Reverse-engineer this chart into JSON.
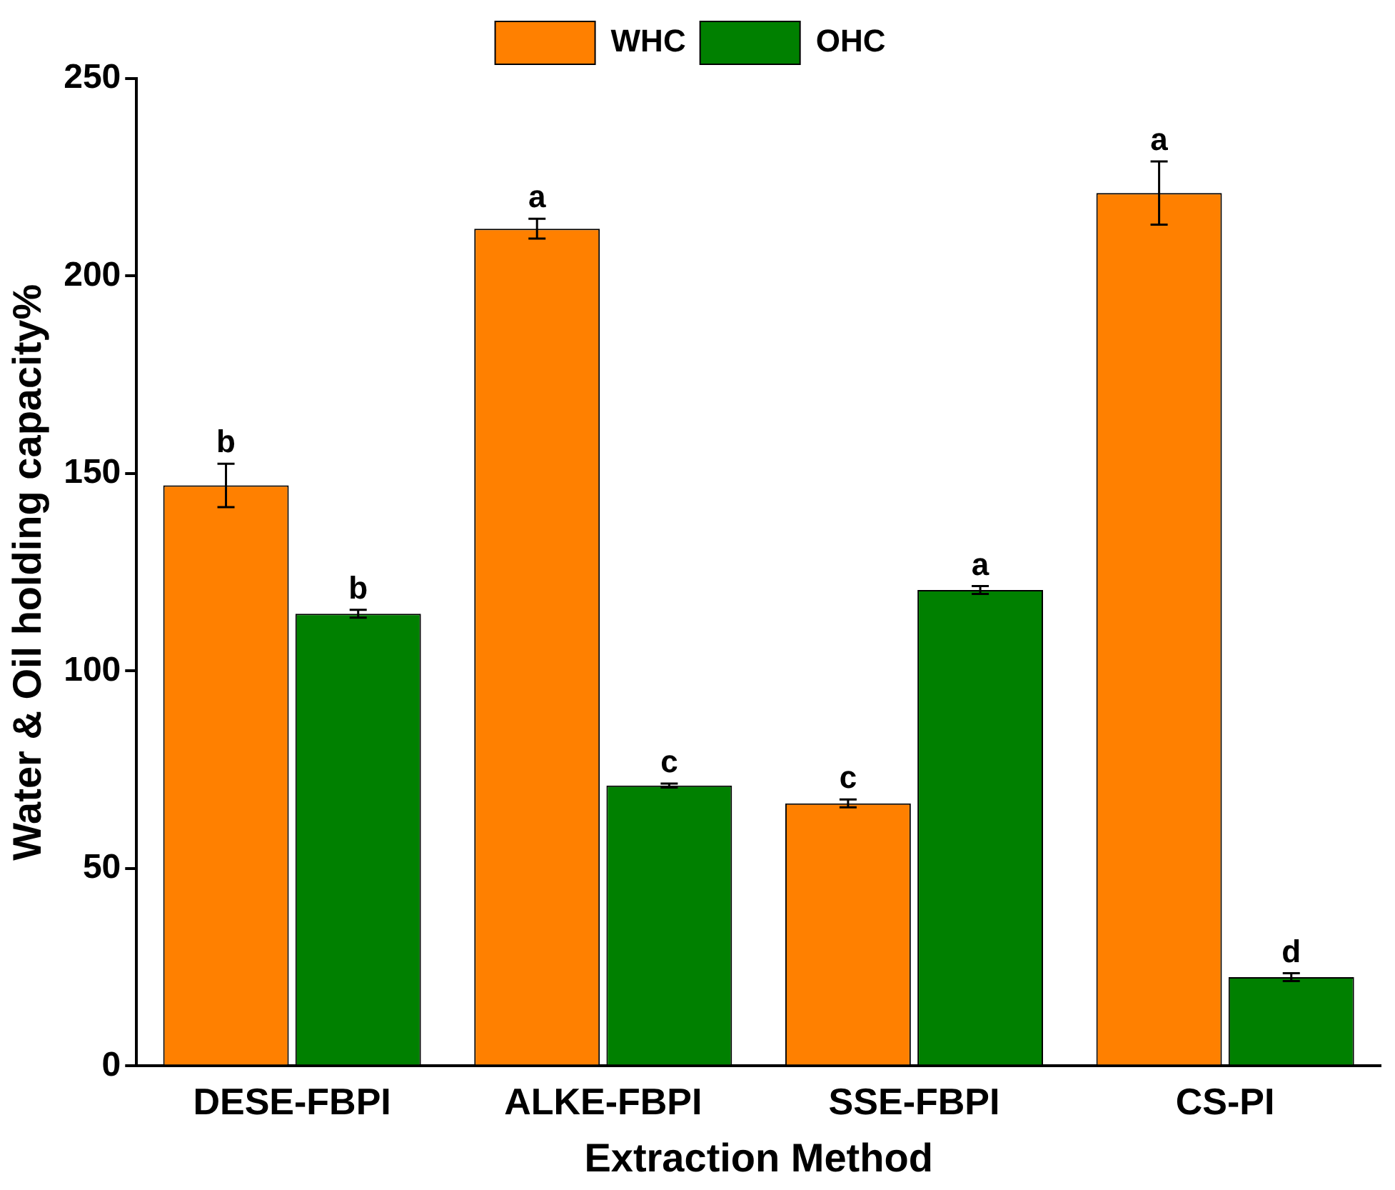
{
  "chart_data": {
    "type": "bar",
    "xlabel": "Extraction Method",
    "ylabel": "Water & Oil holding capacity%",
    "categories": [
      "DESE-FBPI",
      "ALKE-FBPI",
      "SSE-FBPI",
      "CS-PI"
    ],
    "series": [
      {
        "name": "WHC",
        "color": "#ff8000",
        "values": [
          147,
          212,
          66.5,
          221
        ],
        "errors": [
          5.5,
          2.5,
          1,
          8
        ],
        "value_labels": [
          "b",
          "a",
          "c",
          "a"
        ]
      },
      {
        "name": "OHC",
        "color": "#008000",
        "values": [
          114.5,
          71,
          120.5,
          22.5
        ],
        "errors": [
          1,
          0.5,
          1,
          1
        ],
        "value_labels": [
          "b",
          "c",
          "a",
          "d"
        ]
      }
    ],
    "ylim": [
      0,
      250
    ],
    "yticks": [
      0,
      50,
      100,
      150,
      200,
      250
    ],
    "grid": false,
    "legend": "top"
  }
}
